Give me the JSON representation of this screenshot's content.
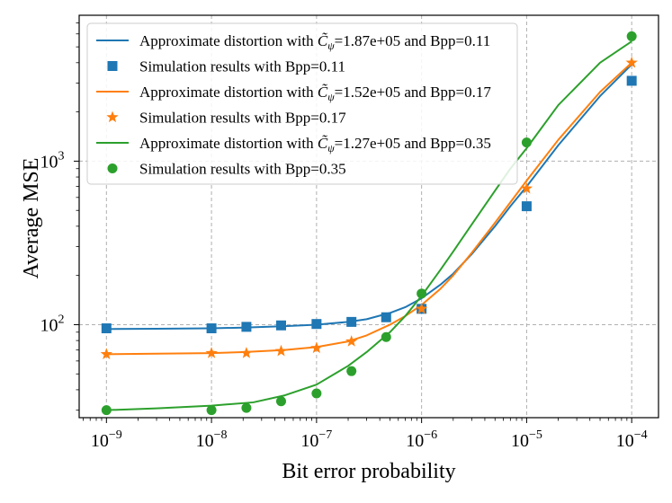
{
  "chart_data": {
    "type": "line",
    "xscale": "log",
    "yscale": "log",
    "xlabel": "Bit error probability",
    "ylabel": "Average MSE",
    "xlim": [
      5.5e-10,
      0.00018
    ],
    "ylim": [
      27,
      7800
    ],
    "grid": true,
    "legend_position": "upper-left",
    "x_ticks": [
      {
        "value": 1e-09,
        "base": "10",
        "exp": "−9"
      },
      {
        "value": 1e-08,
        "base": "10",
        "exp": "−8"
      },
      {
        "value": 1e-07,
        "base": "10",
        "exp": "−7"
      },
      {
        "value": 1e-06,
        "base": "10",
        "exp": "−6"
      },
      {
        "value": 1e-05,
        "base": "10",
        "exp": "−5"
      },
      {
        "value": 0.0001,
        "base": "10",
        "exp": "−4"
      }
    ],
    "y_ticks": [
      {
        "value": 100,
        "base": "10",
        "exp": "2"
      },
      {
        "value": 1000,
        "base": "10",
        "exp": "3"
      }
    ],
    "series": [
      {
        "name": "Approximate distortion with C̃ψ=1.87e+05 and Bpp=0.11",
        "label_prefix": "Approximate distortion with ",
        "label_sym": "C̃",
        "label_sub": "ψ",
        "label_suffix": "=1.87e+05 and Bpp=0.11",
        "kind": "line",
        "color": "#1f77b4",
        "x": [
          1e-09,
          3e-09,
          1e-08,
          2e-08,
          5e-08,
          1e-07,
          2e-07,
          3e-07,
          5e-07,
          7e-07,
          1e-06,
          1.5e-06,
          2e-06,
          3e-06,
          5e-06,
          7e-06,
          1e-05,
          2e-05,
          5e-05,
          0.0001
        ],
        "y": [
          94,
          94.5,
          95,
          96,
          98,
          100,
          104,
          108,
          118,
          128,
          145,
          175,
          205,
          270,
          400,
          530,
          700,
          1250,
          2500,
          3900
        ]
      },
      {
        "name": "Simulation results with Bpp=0.11",
        "kind": "marker",
        "marker": "square",
        "color": "#1f77b4",
        "x": [
          1e-09,
          1e-08,
          2.15e-08,
          4.6e-08,
          1e-07,
          2.15e-07,
          4.6e-07,
          1e-06,
          1e-05,
          0.0001
        ],
        "y": [
          95,
          95,
          97,
          99,
          101,
          104,
          111,
          125,
          530,
          3100
        ]
      },
      {
        "name": "Approximate distortion with C̃ψ=1.52e+05 and Bpp=0.17",
        "label_prefix": "Approximate distortion with ",
        "label_sym": "C̃",
        "label_sub": "ψ",
        "label_suffix": "=1.52e+05 and Bpp=0.17",
        "kind": "line",
        "color": "#ff7f0e",
        "x": [
          1e-09,
          3e-09,
          1e-08,
          2e-08,
          5e-08,
          1e-07,
          2e-07,
          3e-07,
          5e-07,
          7e-07,
          1e-06,
          1.5e-06,
          2e-06,
          3e-06,
          5e-06,
          7e-06,
          1e-05,
          2e-05,
          5e-05,
          0.0001
        ],
        "y": [
          66,
          66.5,
          67,
          68,
          70,
          73,
          79,
          86,
          100,
          113,
          132,
          165,
          200,
          275,
          420,
          560,
          760,
          1350,
          2650,
          4000
        ]
      },
      {
        "name": "Simulation results with Bpp=0.17",
        "kind": "marker",
        "marker": "star",
        "color": "#ff7f0e",
        "x": [
          1e-09,
          1e-08,
          2.15e-08,
          4.6e-08,
          1e-07,
          2.15e-07,
          1e-06,
          1e-05,
          0.0001
        ],
        "y": [
          66,
          67,
          67,
          69,
          72,
          79,
          125,
          680,
          4000
        ]
      },
      {
        "name": "Approximate distortion with C̃ψ=1.27e+05 and Bpp=0.35",
        "label_prefix": "Approximate distortion with ",
        "label_sym": "C̃",
        "label_sub": "ψ",
        "label_suffix": "=1.27e+05 and Bpp=0.35",
        "kind": "line",
        "color": "#2ca02c",
        "x": [
          1e-09,
          3e-09,
          1e-08,
          2.5e-08,
          5e-08,
          1e-07,
          2e-07,
          3e-07,
          5e-07,
          7e-07,
          1e-06,
          1.5e-06,
          2e-06,
          3e-06,
          5e-06,
          7e-06,
          1e-05,
          2e-05,
          5e-05,
          0.0001
        ],
        "y": [
          30,
          30.8,
          32,
          33.5,
          37,
          43,
          56,
          68,
          90,
          113,
          150,
          215,
          280,
          410,
          660,
          900,
          1200,
          2200,
          4000,
          5400
        ]
      },
      {
        "name": "Simulation results with Bpp=0.35",
        "kind": "marker",
        "marker": "circle",
        "color": "#2ca02c",
        "x": [
          1e-09,
          1e-08,
          2.15e-08,
          4.6e-08,
          1e-07,
          2.15e-07,
          4.6e-07,
          1e-06,
          1e-05,
          0.0001
        ],
        "y": [
          30,
          30,
          31,
          34,
          38,
          52,
          84,
          155,
          1300,
          5800
        ]
      }
    ]
  }
}
